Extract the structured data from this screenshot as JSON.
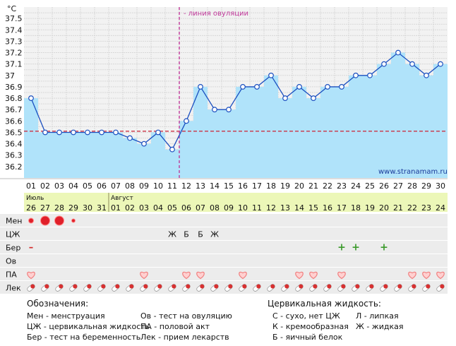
{
  "chart_data": {
    "type": "bar",
    "title": "",
    "y_unit": "°C",
    "ylim": [
      36.1,
      37.6
    ],
    "y_ticks": [
      "36.2",
      "36.3",
      "36.4",
      "36.5",
      "36.6",
      "36.7",
      "36.8",
      "36.9",
      "37",
      "37.1",
      "37.2",
      "37.3",
      "37.4",
      "37.5"
    ],
    "cycle_days": [
      "01",
      "02",
      "03",
      "04",
      "05",
      "06",
      "07",
      "08",
      "09",
      "10",
      "11",
      "12",
      "13",
      "14",
      "15",
      "16",
      "17",
      "18",
      "19",
      "20",
      "21",
      "22",
      "23",
      "24",
      "25",
      "26",
      "27",
      "28",
      "29",
      "30"
    ],
    "temperatures": [
      36.8,
      36.5,
      36.5,
      36.5,
      36.5,
      36.5,
      36.5,
      36.45,
      36.4,
      36.5,
      36.35,
      36.6,
      36.9,
      36.7,
      36.7,
      36.9,
      36.9,
      37.0,
      36.8,
      36.9,
      36.8,
      36.9,
      36.9,
      37.0,
      37.0,
      37.1,
      37.2,
      37.1,
      37.0,
      37.1
    ],
    "coverline": 36.51,
    "ovulation_day": 12,
    "ovulation_label": "- линия овуляции",
    "watermark": "www.stranamam.ru"
  },
  "colors": {
    "bar": "#b0e3fa",
    "line": "#1a4fc0",
    "coverline": "#cc3344",
    "ovulation": "#c0399a",
    "month_band": "#ecf7b8",
    "heart": "#f08080"
  },
  "calendar": {
    "months": [
      {
        "name": "Июль",
        "days": [
          "26",
          "27",
          "28",
          "29",
          "30",
          "31"
        ]
      },
      {
        "name": "Август",
        "days": [
          "01",
          "02",
          "03",
          "04",
          "05",
          "06",
          "07",
          "08",
          "09",
          "10",
          "11",
          "12",
          "13",
          "14",
          "15",
          "16",
          "17",
          "18",
          "19",
          "20",
          "21",
          "22",
          "23",
          "24"
        ]
      }
    ]
  },
  "rows": [
    {
      "label": "Мен",
      "kind": "mens",
      "marks": {
        "1": "small",
        "2": "large",
        "3": "large",
        "4": "tiny"
      }
    },
    {
      "label": "ЦЖ",
      "kind": "text",
      "marks": {
        "11": "Ж",
        "12": "Б",
        "13": "Б",
        "14": "Ж"
      }
    },
    {
      "label": "Бер",
      "kind": "text",
      "marks": {
        "1": "–",
        "23": "+",
        "24": "+",
        "26": "+"
      }
    },
    {
      "label": "Ов",
      "kind": "text",
      "marks": {}
    },
    {
      "label": "ПА",
      "kind": "heart",
      "days": [
        1,
        9,
        12,
        13,
        16,
        20,
        21,
        23,
        28,
        29,
        30
      ]
    },
    {
      "label": "Лек",
      "kind": "pill",
      "days": [
        1,
        2,
        3,
        4,
        5,
        6,
        7,
        8,
        9,
        10,
        11,
        12,
        13,
        14,
        15,
        16,
        17,
        18,
        19,
        20,
        21,
        22,
        23,
        24,
        25,
        26,
        27,
        28,
        29,
        30
      ]
    }
  ],
  "legend": {
    "title": "Обозначения:",
    "col1": [
      "Мен - менструация",
      "ЦЖ - цервикальная жидкость",
      "Бер - тест на беременность"
    ],
    "col2": [
      "Ов - тест на овуляцию",
      "ПА - половой акт",
      "Лек - прием лекарств"
    ],
    "fluid_title": "Цервикальная жидкость:",
    "fluid_col1": [
      "С - сухо, нет ЦЖ",
      "К - кремообразная",
      "Б - яичный белок"
    ],
    "fluid_col2": [
      "Л - липкая",
      "Ж - жидкая"
    ]
  }
}
